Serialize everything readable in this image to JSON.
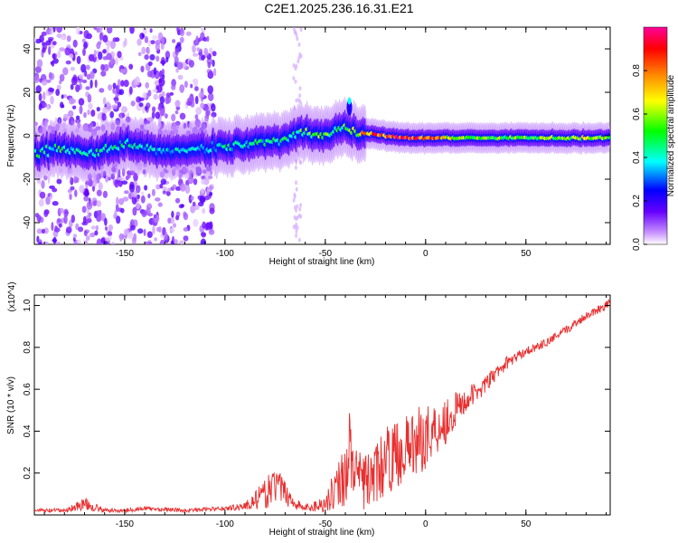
{
  "title": "C2E1.2025.236.16.31.E21",
  "chart_data": [
    {
      "type": "heatmap",
      "xlabel": "Height of straight line (km)",
      "ylabel": "Frequency (Hz)",
      "xlim": [
        -195,
        92
      ],
      "ylim": [
        -50,
        50
      ],
      "x_ticks": [
        -150,
        -100,
        -50,
        0,
        50
      ],
      "y_ticks": [
        -40,
        -20,
        0,
        20,
        40
      ],
      "colorbar": {
        "label": "Normalized spectral amplitude",
        "range": [
          0,
          1
        ],
        "ticks": [
          "0.0",
          "0.2",
          "0.4",
          "0.6",
          "0.8"
        ],
        "tick_values": [
          0,
          0.2,
          0.4,
          0.6,
          0.8
        ],
        "colors": [
          "#ffffff",
          "#cc99ff",
          "#6600ff",
          "#0000ff",
          "#00ffff",
          "#00ff00",
          "#ffff00",
          "#ff8800",
          "#ff0000",
          "#ff0099"
        ]
      },
      "ridge": {
        "x": [
          -195,
          -180,
          -165,
          -150,
          -130,
          -110,
          -90,
          -70,
          -60,
          -50,
          -40,
          -35,
          -30,
          -20,
          -10,
          0,
          20,
          50,
          92
        ],
        "freq": [
          -8,
          -6,
          -8,
          -4,
          -7,
          -6,
          -4,
          -2,
          2,
          0,
          4,
          2,
          1,
          0,
          -1,
          -1,
          -1,
          -1,
          -1
        ],
        "amplitude": [
          0.45,
          0.45,
          0.4,
          0.42,
          0.35,
          0.38,
          0.42,
          0.45,
          0.5,
          0.5,
          0.48,
          0.55,
          0.7,
          0.85,
          0.9,
          0.9,
          0.55,
          0.55,
          0.6
        ]
      },
      "scatter_region": [
        -195,
        -105
      ]
    },
    {
      "type": "line",
      "xlabel": "Height of straight line (km)",
      "ylabel": "SNR (10 * v/v)",
      "y_multiplier": "(x10^4)",
      "xlim": [
        -195,
        92
      ],
      "ylim": [
        0,
        1.05
      ],
      "x_ticks": [
        -150,
        -100,
        -50,
        0,
        50
      ],
      "y_ticks": [
        0.2,
        0.4,
        0.6,
        0.8,
        1.0
      ],
      "y_tick_labels": [
        "0.2",
        "0.4",
        "0.6",
        "0.8",
        "1.0"
      ],
      "color": "#e83030",
      "x": [
        -195,
        -180,
        -170,
        -160,
        -150,
        -140,
        -120,
        -100,
        -90,
        -80,
        -75,
        -70,
        -65,
        -60,
        -50,
        -45,
        -40,
        -38,
        -35,
        -30,
        -25,
        -20,
        -10,
        0,
        10,
        20,
        30,
        40,
        50,
        60,
        70,
        80,
        92
      ],
      "y": [
        0.02,
        0.02,
        0.05,
        0.02,
        0.02,
        0.03,
        0.02,
        0.03,
        0.04,
        0.09,
        0.14,
        0.1,
        0.05,
        0.03,
        0.05,
        0.12,
        0.18,
        0.3,
        0.18,
        0.14,
        0.18,
        0.24,
        0.3,
        0.36,
        0.44,
        0.54,
        0.62,
        0.72,
        0.78,
        0.82,
        0.88,
        0.95,
        1.01
      ],
      "noise": [
        0.01,
        0.01,
        0.03,
        0.01,
        0.01,
        0.01,
        0.01,
        0.01,
        0.02,
        0.07,
        0.09,
        0.06,
        0.03,
        0.02,
        0.04,
        0.1,
        0.16,
        0.2,
        0.12,
        0.14,
        0.14,
        0.16,
        0.16,
        0.16,
        0.12,
        0.06,
        0.04,
        0.03,
        0.02,
        0.02,
        0.02,
        0.02,
        0.02
      ]
    }
  ]
}
